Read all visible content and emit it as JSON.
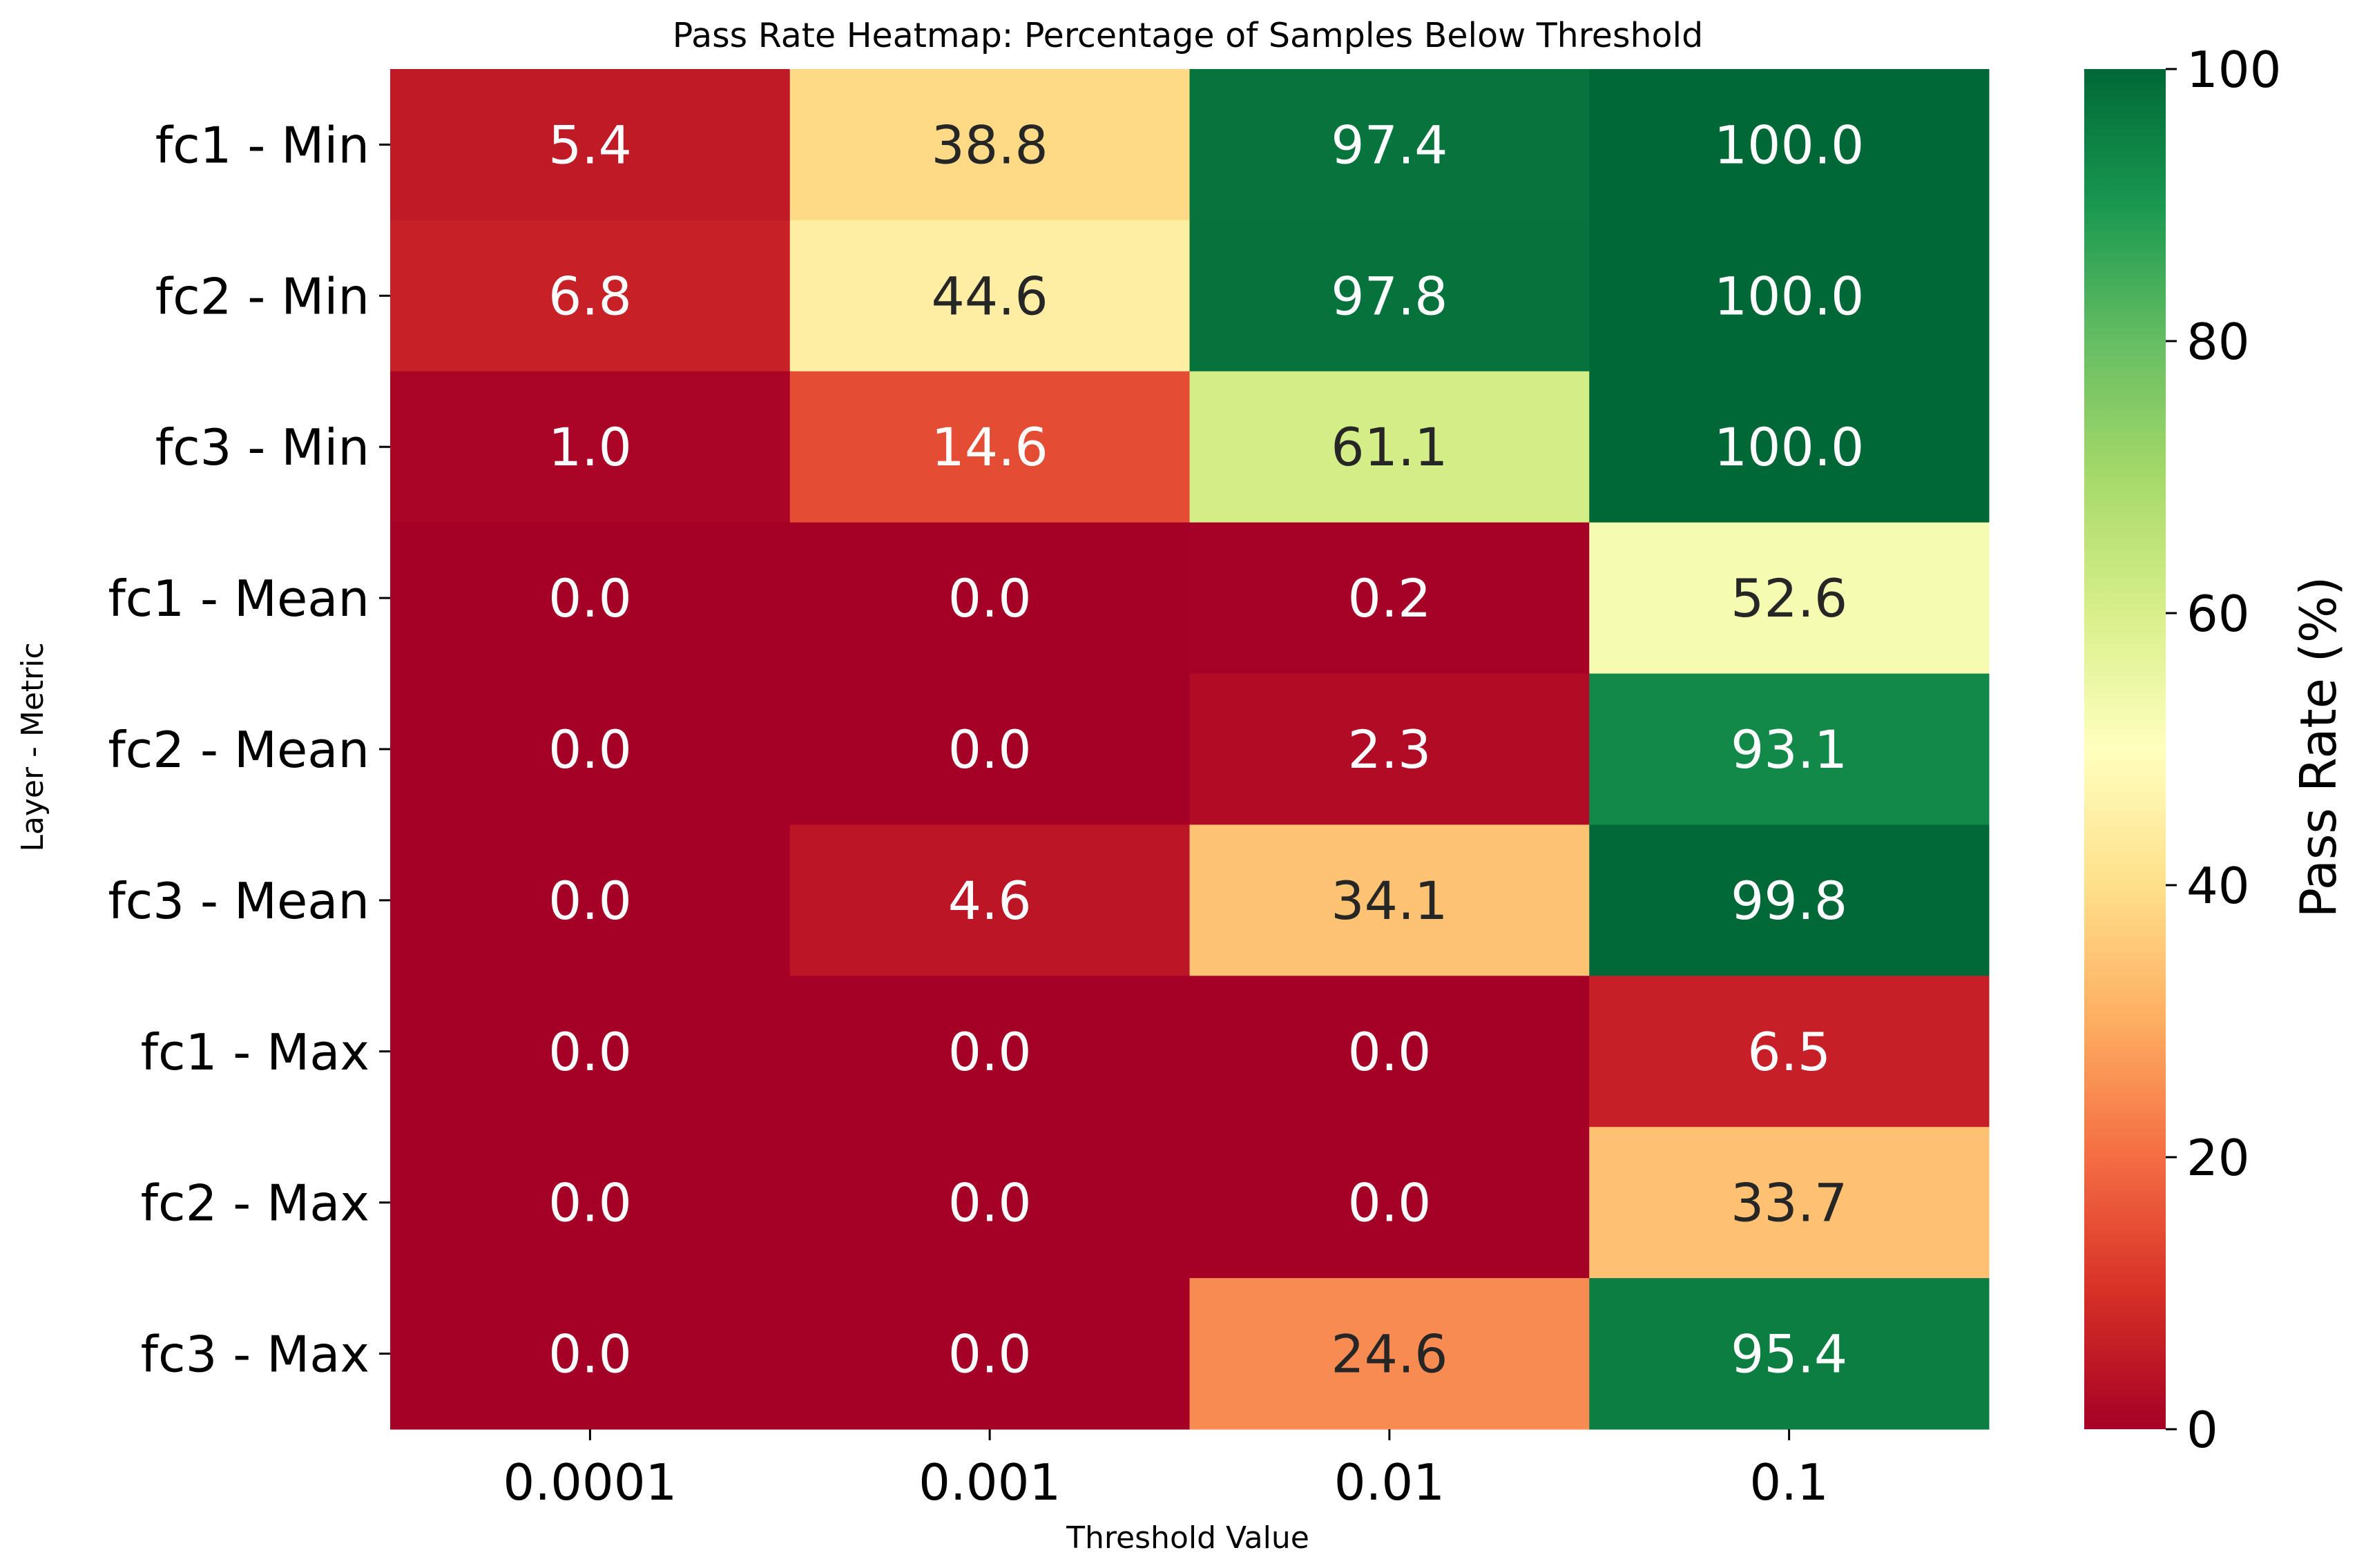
{
  "chart_data": {
    "type": "heatmap",
    "title": "Pass Rate Heatmap: Percentage of Samples Below Threshold",
    "xlabel": "Threshold Value",
    "ylabel": "Layer - Metric",
    "x_categories": [
      "0.0001",
      "0.001",
      "0.01",
      "0.1"
    ],
    "y_categories": [
      "fc1 - Min",
      "fc2 - Min",
      "fc3 - Min",
      "fc1 - Mean",
      "fc2 - Mean",
      "fc3 - Mean",
      "fc1 - Max",
      "fc2 - Max",
      "fc3 - Max"
    ],
    "values": [
      [
        5.4,
        38.8,
        97.4,
        100.0
      ],
      [
        6.8,
        44.6,
        97.8,
        100.0
      ],
      [
        1.0,
        14.6,
        61.1,
        100.0
      ],
      [
        0.0,
        0.0,
        0.2,
        52.6
      ],
      [
        0.0,
        0.0,
        2.3,
        93.1
      ],
      [
        0.0,
        4.6,
        34.1,
        99.8
      ],
      [
        0.0,
        0.0,
        0.0,
        6.5
      ],
      [
        0.0,
        0.0,
        0.0,
        33.7
      ],
      [
        0.0,
        0.0,
        24.6,
        95.4
      ]
    ],
    "value_format": "0.1f",
    "colorbar": {
      "label": "Pass Rate (%)",
      "range": [
        0,
        100
      ],
      "ticks": [
        "0",
        "20",
        "40",
        "60",
        "80",
        "100"
      ],
      "colormap": "RdYlGn",
      "colors": [
        "#a50026",
        "#d73027",
        "#f46d43",
        "#fdae61",
        "#fee08b",
        "#ffffbf",
        "#d9ef8b",
        "#a6d96a",
        "#66bd63",
        "#1a9850",
        "#006837"
      ]
    },
    "grid": false
  }
}
